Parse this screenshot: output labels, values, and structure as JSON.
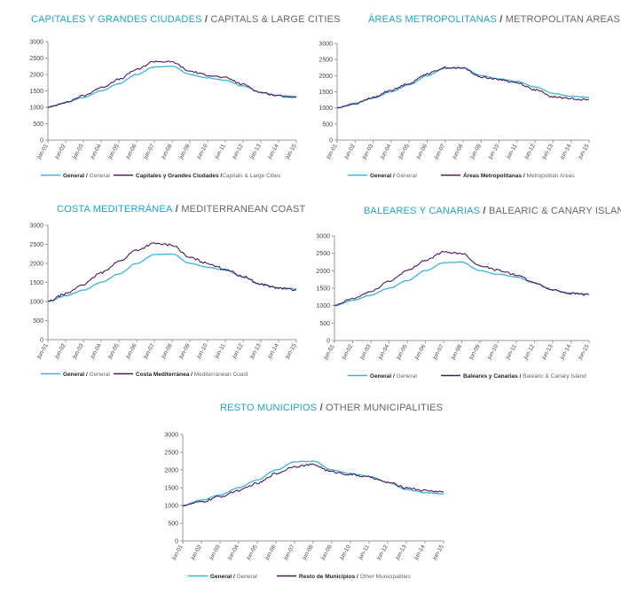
{
  "colors": {
    "general": "#3bb4dc",
    "series": "#4d1a5a",
    "title_es": "#1fa3c9",
    "title_en": "#666666",
    "axis": "#999999"
  },
  "chart_data": [
    {
      "type": "line",
      "title_es": "CAPITALES Y GRANDES CIUDADES",
      "title_sep": " / ",
      "title_en": "CAPITALS & LARGE CITIES",
      "x": [
        "jun-01",
        "jun-02",
        "jun-03",
        "jun-04",
        "jun-05",
        "jun-06",
        "jun-07",
        "jun-08",
        "jun-09",
        "jun-10",
        "jun-11",
        "jun-12",
        "jun-13",
        "jun-14",
        "jun-15"
      ],
      "ylim": [
        0,
        3000
      ],
      "yticks": [
        "0",
        "500",
        "1000",
        "1500",
        "2000",
        "2500",
        "3000"
      ],
      "series": [
        {
          "name": "General",
          "legend_bold": "General /",
          "legend_light": " General",
          "values": [
            1000,
            1150,
            1300,
            1500,
            1720,
            2000,
            2230,
            2250,
            2000,
            1900,
            1820,
            1650,
            1450,
            1360,
            1330
          ]
        },
        {
          "name": "Capitales y Grandes Ciudades",
          "legend_bold": "Capitales y Grandes Ciudades /",
          "legend_light": "Capitals & Large Cities",
          "values": [
            1000,
            1150,
            1350,
            1600,
            1850,
            2150,
            2400,
            2380,
            2100,
            1980,
            1900,
            1700,
            1450,
            1350,
            1300
          ]
        }
      ]
    },
    {
      "type": "line",
      "title_es": "ÁREAS METROPOLITANAS",
      "title_sep": " / ",
      "title_en": "METROPOLITAN AREAS",
      "x": [
        "jun-01",
        "jun-02",
        "jun-03",
        "jun-04",
        "jun-05",
        "jun-06",
        "jun-07",
        "jun-08",
        "jun-09",
        "jun-10",
        "jun-11",
        "jun-12",
        "jun-13",
        "jun-14",
        "jun-15"
      ],
      "ylim": [
        0,
        3000
      ],
      "yticks": [
        "0",
        "500",
        "1000",
        "1500",
        "2000",
        "2500",
        "3000"
      ],
      "series": [
        {
          "name": "General",
          "legend_bold": "General /",
          "legend_light": " General",
          "values": [
            1000,
            1150,
            1300,
            1500,
            1720,
            2000,
            2230,
            2250,
            2000,
            1900,
            1820,
            1650,
            1450,
            1360,
            1330
          ]
        },
        {
          "name": "Áreas Metropolitanas",
          "legend_bold": "Áreas Metropolitanas /",
          "legend_light": " Metropolitan Areas",
          "values": [
            1000,
            1130,
            1320,
            1550,
            1760,
            2060,
            2250,
            2230,
            1960,
            1880,
            1780,
            1560,
            1340,
            1290,
            1250
          ]
        }
      ]
    },
    {
      "type": "line",
      "title_es": "COSTA MEDITERRÁNEA",
      "title_sep": " / ",
      "title_en": "MEDITERRANEAN COAST",
      "x": [
        "jun-01",
        "jun-02",
        "jun-03",
        "jun-04",
        "jun-05",
        "jun-06",
        "jun-07",
        "jun-08",
        "jun-09",
        "jun-10",
        "jun-11",
        "jun-12",
        "jun-13",
        "jun-14",
        "jun-15"
      ],
      "ylim": [
        0,
        3000
      ],
      "yticks": [
        "0",
        "500",
        "1000",
        "1500",
        "2000",
        "2500",
        "3000"
      ],
      "series": [
        {
          "name": "General",
          "legend_bold": "General /",
          "legend_light": " General",
          "values": [
            1000,
            1150,
            1300,
            1500,
            1720,
            2000,
            2230,
            2250,
            2000,
            1900,
            1820,
            1650,
            1450,
            1360,
            1330
          ]
        },
        {
          "name": "Costa Mediterránea",
          "legend_bold": "Costa Mediterránea /",
          "legend_light": " Mediterranean Coast",
          "values": [
            1000,
            1200,
            1450,
            1750,
            2050,
            2350,
            2520,
            2480,
            2150,
            2000,
            1850,
            1650,
            1450,
            1350,
            1300
          ]
        }
      ]
    },
    {
      "type": "line",
      "title_es": "BALEARES Y CANARIAS",
      "title_sep": " / ",
      "title_en": "BALEARIC & CANARY ISLAND",
      "x": [
        "jun-01",
        "jun-02",
        "jun-03",
        "jun-04",
        "jun-05",
        "jun-06",
        "jun-07",
        "jun-08",
        "jun-09",
        "jun-10",
        "jun-11",
        "jun-12",
        "jun-13",
        "jun-14",
        "jun-15"
      ],
      "ylim": [
        0,
        3000
      ],
      "yticks": [
        "0",
        "500",
        "1000",
        "1500",
        "2000",
        "2500",
        "3000"
      ],
      "series": [
        {
          "name": "General",
          "legend_bold": "General /",
          "legend_light": " General",
          "values": [
            1000,
            1150,
            1300,
            1500,
            1720,
            2000,
            2230,
            2250,
            2000,
            1900,
            1820,
            1650,
            1450,
            1360,
            1330
          ]
        },
        {
          "name": "Baleares y Canarias",
          "legend_bold": "Baleares y Canarias /",
          "legend_light": " Balearic & Canary Island",
          "values": [
            1000,
            1200,
            1400,
            1700,
            2000,
            2300,
            2530,
            2500,
            2150,
            2020,
            1880,
            1650,
            1450,
            1350,
            1320
          ]
        }
      ]
    },
    {
      "type": "line",
      "title_es": "RESTO MUNICIPIOS",
      "title_sep": " / ",
      "title_en": "OTHER MUNICIPALITIES",
      "x": [
        "jun-01",
        "jun-02",
        "jun-03",
        "jun-04",
        "jun-05",
        "jun-06",
        "jun-07",
        "jun-08",
        "jun-09",
        "jun-10",
        "jun-11",
        "jun-12",
        "jun-13",
        "jun-14",
        "jun-15"
      ],
      "ylim": [
        0,
        3000
      ],
      "yticks": [
        "0",
        "500",
        "1000",
        "1500",
        "2000",
        "2500",
        "3000"
      ],
      "series": [
        {
          "name": "General",
          "legend_bold": "General /",
          "legend_light": " General",
          "values": [
            1000,
            1150,
            1300,
            1500,
            1720,
            2000,
            2230,
            2250,
            2000,
            1900,
            1820,
            1650,
            1450,
            1360,
            1330
          ]
        },
        {
          "name": "Resto de Municipios",
          "legend_bold": "Resto de Municipios /",
          "legend_light": " Other Municipalities",
          "values": [
            1000,
            1100,
            1250,
            1420,
            1620,
            1900,
            2100,
            2150,
            1950,
            1870,
            1800,
            1650,
            1500,
            1420,
            1380
          ]
        }
      ]
    }
  ]
}
